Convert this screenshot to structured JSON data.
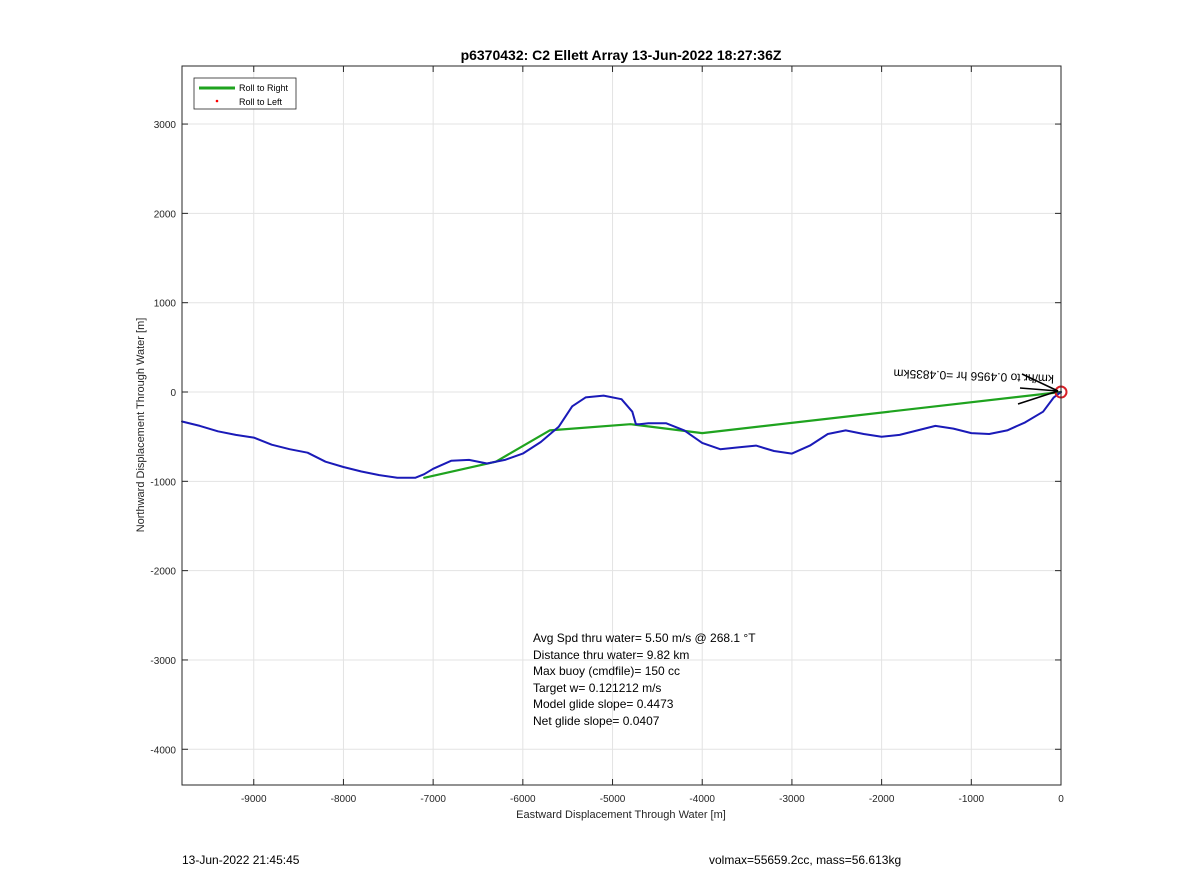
{
  "chart_data": {
    "type": "line",
    "title": "p6370432: C2 Ellett Array 13-Jun-2022 18:27:36Z",
    "xlabel": "Eastward Displacement Through Water [m]",
    "ylabel": "Northward Displacement Through Water [m]",
    "xlim": [
      -9800,
      0
    ],
    "ylim": [
      -4400,
      3650
    ],
    "xticks": [
      -9000,
      -8000,
      -7000,
      -6000,
      -5000,
      -4000,
      -3000,
      -2000,
      -1000,
      0
    ],
    "yticks": [
      -4000,
      -3000,
      -2000,
      -1000,
      0,
      1000,
      2000,
      3000
    ],
    "xtick_labels": [
      "-9000",
      "-8000",
      "-7000",
      "-6000",
      "-5000",
      "-4000",
      "-3000",
      "-2000",
      "-1000",
      "0"
    ],
    "ytick_labels": [
      "-4000",
      "-3000",
      "-2000",
      "-1000",
      "0",
      "1000",
      "2000",
      "3000"
    ],
    "grid": true,
    "legend": {
      "location": "top-left",
      "entries": [
        {
          "label": "Roll to Right",
          "color": "#1fa31f",
          "marker": "line"
        },
        {
          "label": "Roll to Left",
          "color": "#ff0000",
          "marker": "dot"
        }
      ]
    },
    "series": [
      {
        "color": "#1fa31f",
        "x": [
          -7100,
          -6300,
          -5700,
          -4800,
          -4000,
          0
        ],
        "y": [
          -960,
          -780,
          -430,
          -360,
          -460,
          0
        ]
      },
      {
        "color": "#1a1ab8",
        "x": [
          -9800,
          -9600,
          -9400,
          -9200,
          -9000,
          -8800,
          -8600,
          -8400,
          -8200,
          -8000,
          -7800,
          -7600,
          -7400,
          -7200,
          -7100,
          -7000,
          -6800,
          -6600,
          -6400,
          -6200,
          -6000,
          -5800,
          -5600,
          -5450,
          -5300,
          -5100,
          -4900,
          -4780,
          -4740,
          -4700,
          -4600,
          -4400,
          -4200,
          -4000,
          -3800,
          -3600,
          -3400,
          -3200,
          -3000,
          -2800,
          -2600,
          -2400,
          -2200,
          -2000,
          -1800,
          -1600,
          -1400,
          -1200,
          -1000,
          -800,
          -600,
          -400,
          -200,
          -80,
          0
        ],
        "y": [
          -330,
          -380,
          -440,
          -480,
          -510,
          -590,
          -640,
          -680,
          -780,
          -840,
          -890,
          -930,
          -960,
          -960,
          -920,
          -860,
          -770,
          -760,
          -800,
          -760,
          -690,
          -560,
          -390,
          -160,
          -60,
          -40,
          -80,
          -220,
          -360,
          -360,
          -350,
          -350,
          -430,
          -570,
          -640,
          -620,
          -600,
          -660,
          -690,
          -600,
          -470,
          -430,
          -470,
          -500,
          -480,
          -430,
          -380,
          -410,
          -460,
          -470,
          -430,
          -340,
          -220,
          -60,
          0
        ]
      }
    ],
    "marker": {
      "x": 0,
      "y": 0,
      "color": "#d81f26",
      "shape": "circle"
    },
    "annotations": {
      "track_label": "km/hr to 0.4956 hr =0.4835km",
      "stats_lines": [
        "Avg Spd thru water=  5.50 m/s @ 268.1 °T",
        "Distance thru water=  9.82 km",
        "Max buoy (cmdfile)= 150 cc",
        "Target w= 0.121212 m/s",
        "Model glide slope= 0.4473",
        "Net glide slope= 0.0407"
      ]
    }
  },
  "footer": {
    "timestamp": "13-Jun-2022 21:45:45",
    "info": "volmax=55659.2cc, mass=56.613kg"
  }
}
